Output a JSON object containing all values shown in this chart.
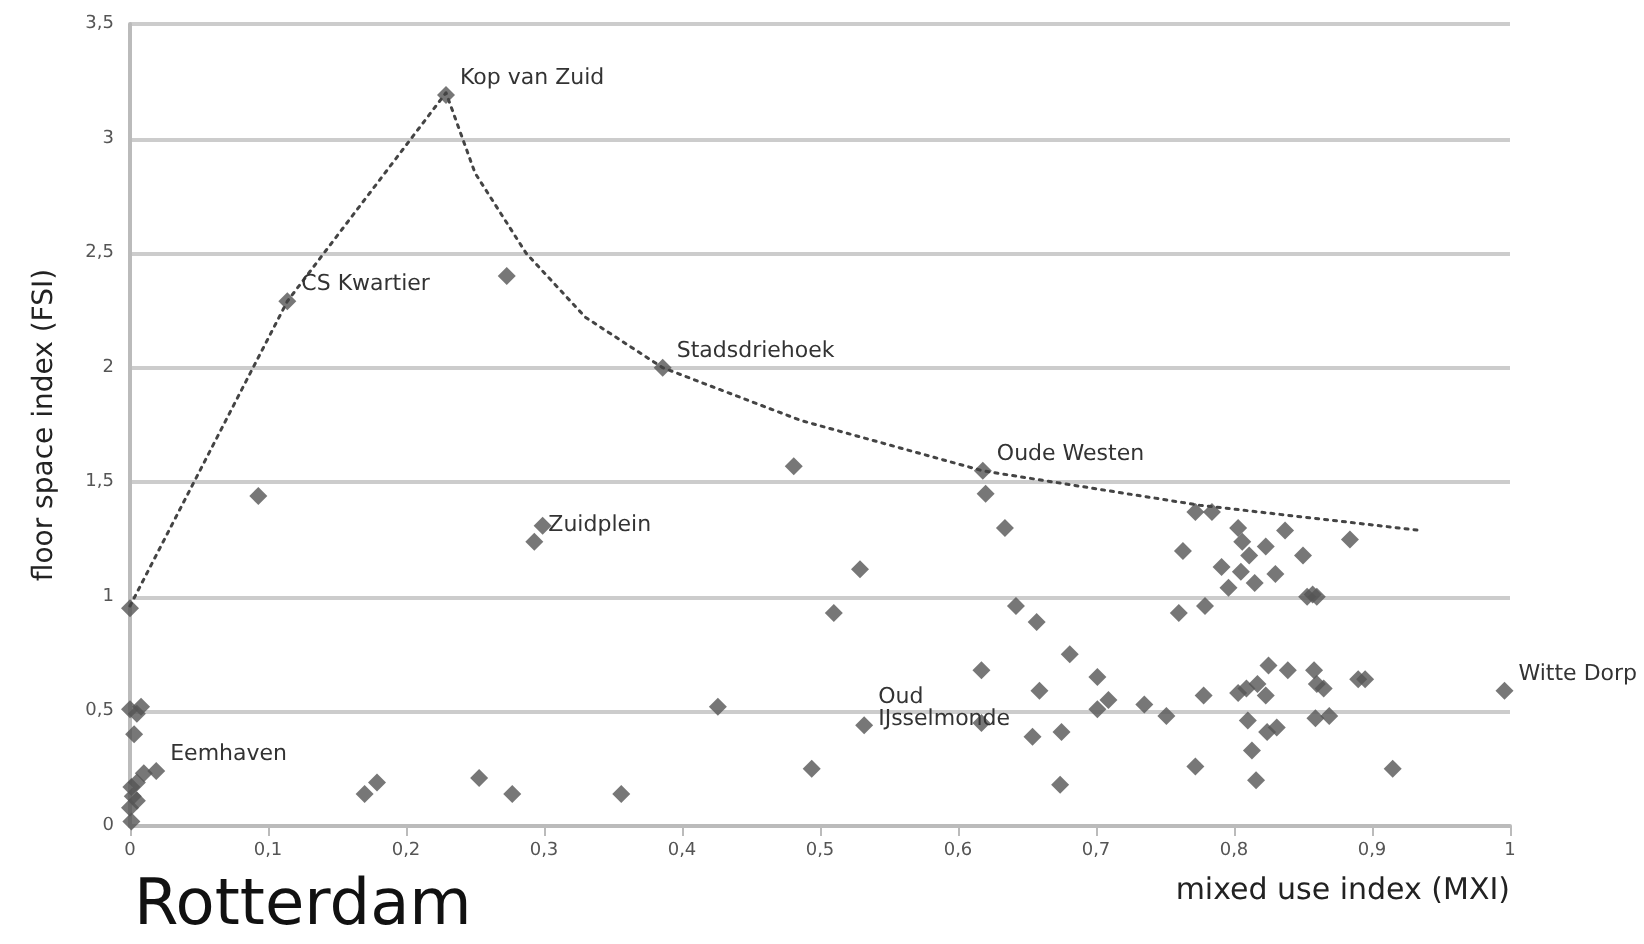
{
  "chart_data": {
    "type": "scatter",
    "title": "Rotterdam",
    "xlabel": "mixed use index (MXI)",
    "ylabel": "floor space index (FSI)",
    "xlim": [
      0,
      1
    ],
    "ylim": [
      0,
      3.5
    ],
    "xticks": [
      0,
      {
        "value": 0.1,
        "label": "0,1"
      },
      {
        "value": 0.2,
        "label": "0,2"
      },
      {
        "value": 0.3,
        "label": "0,3"
      },
      {
        "value": 0.4,
        "label": "0,4"
      },
      {
        "value": 0.5,
        "label": "0,5"
      },
      {
        "value": 0.6,
        "label": "0,6"
      },
      {
        "value": 0.7,
        "label": "0,7"
      },
      {
        "value": 0.8,
        "label": "0,8"
      },
      {
        "value": 0.9,
        "label": "0,9"
      },
      1
    ],
    "yticks": [
      0,
      {
        "value": 0.5,
        "label": "0,5"
      },
      1,
      {
        "value": 1.5,
        "label": "1,5"
      },
      2,
      {
        "value": 2.5,
        "label": "2,5"
      },
      3,
      {
        "value": 3.5,
        "label": "3,5"
      }
    ],
    "grid": "y",
    "marker": "diamond",
    "series": [
      {
        "color": "#555555",
        "x": [
          0.229,
          0.114,
          0.273,
          0.386,
          0.093,
          0.299,
          0.293,
          0.481,
          0.51,
          0,
          0,
          0.005,
          0.008,
          0.003,
          0.01,
          0.019,
          0.001,
          0.005,
          0.002,
          0.005,
          0,
          0.001,
          0.426,
          0.17,
          0.179,
          0.253,
          0.277,
          0.356,
          0.494,
          0.618,
          0.62,
          0.634,
          0.529,
          0.772,
          0.784,
          0.803,
          0.806,
          0.837,
          0.823,
          0.763,
          0.811,
          0.85,
          0.884,
          0.791,
          0.805,
          0.83,
          0.815,
          0.796,
          0.853,
          0.857,
          0.86,
          0.76,
          0.779,
          0.642,
          0.657,
          0.681,
          0.617,
          0.701,
          0.659,
          0.709,
          0.701,
          0.735,
          0.751,
          0.778,
          0.825,
          0.839,
          0.817,
          0.803,
          0.809,
          0.823,
          0.858,
          0.86,
          0.865,
          0.89,
          0.895,
          0.996,
          0.859,
          0.869,
          0.81,
          0.824,
          0.831,
          0.617,
          0.532,
          0.654,
          0.675,
          0.813,
          0.772,
          0.915,
          0.816,
          0.674
        ],
        "values": [
          3.19,
          2.29,
          2.4,
          2.0,
          1.44,
          1.31,
          1.24,
          1.57,
          0.93,
          0.95,
          0.51,
          0.49,
          0.52,
          0.4,
          0.23,
          0.24,
          0.17,
          0.19,
          0.13,
          0.11,
          0.08,
          0.02,
          0.52,
          0.14,
          0.19,
          0.21,
          0.14,
          0.14,
          0.25,
          1.55,
          1.45,
          1.3,
          1.12,
          1.37,
          1.37,
          1.3,
          1.24,
          1.29,
          1.22,
          1.2,
          1.18,
          1.18,
          1.25,
          1.13,
          1.11,
          1.1,
          1.06,
          1.04,
          1.0,
          1.01,
          1.0,
          0.93,
          0.96,
          0.96,
          0.89,
          0.75,
          0.68,
          0.65,
          0.59,
          0.55,
          0.51,
          0.53,
          0.48,
          0.57,
          0.7,
          0.68,
          0.62,
          0.58,
          0.6,
          0.57,
          0.68,
          0.62,
          0.6,
          0.64,
          0.64,
          0.59,
          0.47,
          0.48,
          0.46,
          0.41,
          0.43,
          0.45,
          0.44,
          0.39,
          0.41,
          0.33,
          0.26,
          0.25,
          0.2,
          0.18
        ]
      },
      {
        "type": "line",
        "color": "#444444",
        "line_style": "dotted",
        "marker": "none",
        "x": [
          0,
          0.114,
          0.229,
          0.25,
          0.287,
          0.33,
          0.386,
          0.486,
          0.618,
          0.775,
          0.935
        ],
        "values": [
          0.96,
          2.29,
          3.2,
          2.85,
          2.5,
          2.22,
          2.0,
          1.77,
          1.55,
          1.4,
          1.29
        ]
      }
    ],
    "annotations": [
      {
        "text": "Kop van Zuid",
        "x": 0.229,
        "y": 3.19
      },
      {
        "text": "CS Kwartier",
        "x": 0.114,
        "y": 2.29
      },
      {
        "text": "Stadsdriehoek",
        "x": 0.386,
        "y": 2.0
      },
      {
        "text": "Oude Westen",
        "x": 0.618,
        "y": 1.55
      },
      {
        "text": "Zuidplein",
        "x": 0.293,
        "y": 1.24
      },
      {
        "text": "Eemhaven",
        "x": 0.019,
        "y": 0.24
      },
      {
        "text": "Oud IJsselmonde",
        "x": 0.532,
        "y": 0.44
      },
      {
        "text": "Witte Dorp",
        "x": 0.996,
        "y": 0.59
      }
    ]
  }
}
